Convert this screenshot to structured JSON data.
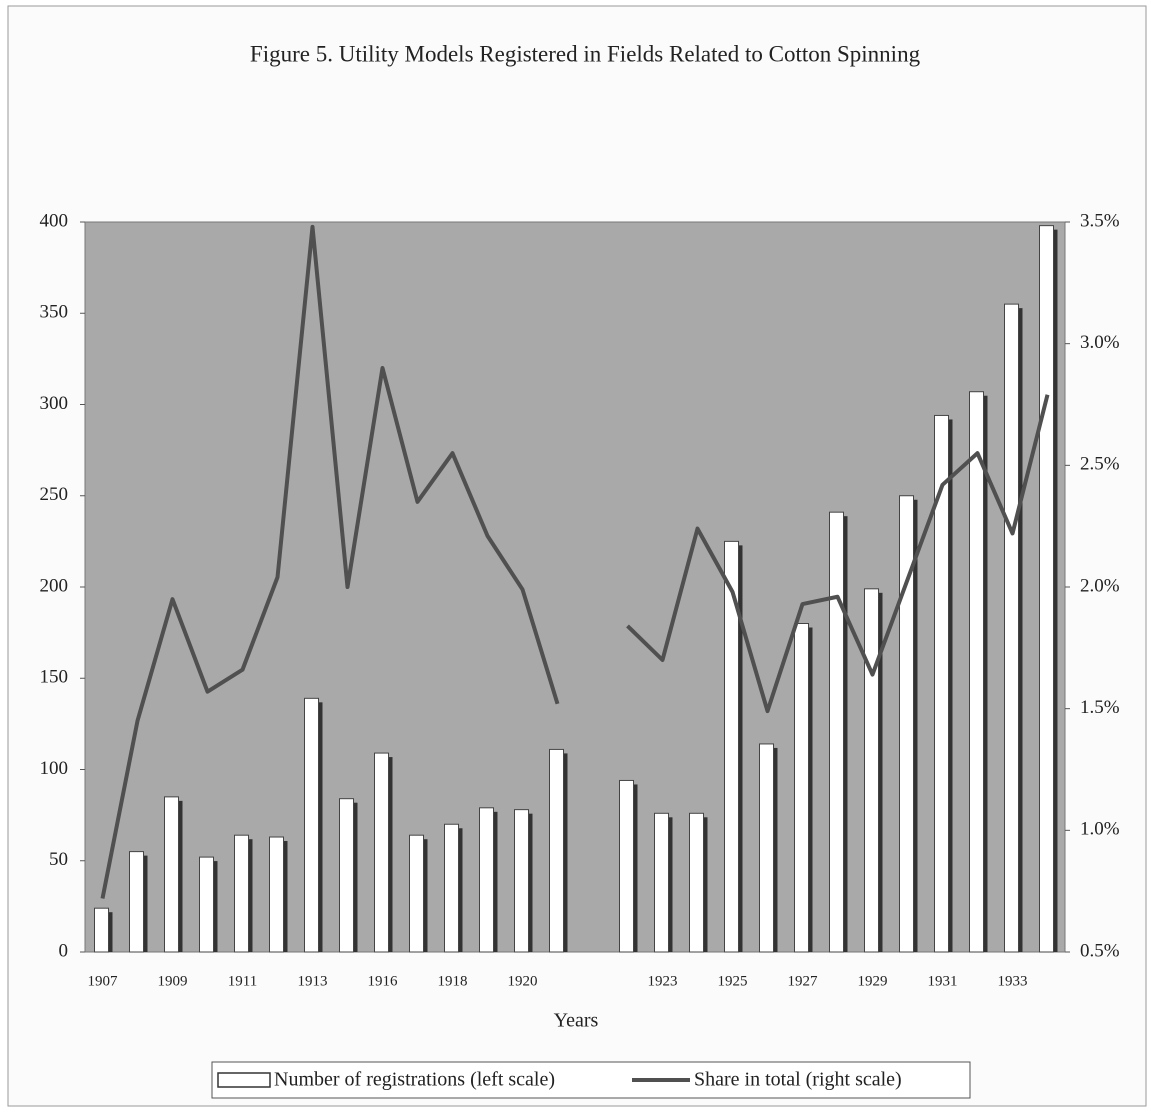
{
  "chart_data": {
    "type": "bar_line",
    "title": "Figure 5. Utility Models Registered in Fields Related to Cotton Spinning",
    "x_label": "Years",
    "categories": [
      "1907",
      null,
      "1909",
      null,
      "1911",
      null,
      "1913",
      null,
      "1916",
      null,
      "1918",
      null,
      "1920",
      null,
      null,
      null,
      "1923",
      null,
      "1925",
      null,
      "1927",
      null,
      "1929",
      null,
      "1931",
      null,
      "1933",
      null
    ],
    "series": [
      {
        "name": "Number of registrations (left scale)",
        "color": "#ffffff",
        "values": [
          24,
          55,
          85,
          52,
          64,
          63,
          139,
          84,
          109,
          64,
          70,
          79,
          78,
          111,
          null,
          94,
          76,
          76,
          225,
          114,
          180,
          241,
          199,
          250,
          294,
          307,
          355,
          398
        ]
      },
      {
        "name": "Share in total (right scale)",
        "color": "#505050",
        "axis": "y2",
        "values": [
          0.72,
          1.45,
          1.95,
          1.57,
          1.66,
          2.04,
          3.48,
          2.0,
          2.9,
          2.35,
          2.55,
          2.21,
          1.99,
          1.52,
          null,
          1.84,
          1.7,
          2.24,
          1.98,
          1.49,
          1.93,
          1.96,
          1.64,
          2.03,
          2.42,
          2.55,
          2.22,
          2.79
        ]
      }
    ],
    "ylim": [
      0,
      400
    ],
    "yticks": [
      0,
      50,
      100,
      150,
      200,
      250,
      300,
      350,
      400
    ],
    "y2lim": [
      0.5,
      3.5
    ],
    "y2ticks": [
      {
        "value": 0.5,
        "label": "0.5%"
      },
      {
        "value": 1.0,
        "label": "1.0%"
      },
      {
        "value": 1.5,
        "label": "1.5%"
      },
      {
        "value": 2.0,
        "label": "2.0%"
      },
      {
        "value": 2.5,
        "label": "2.5%"
      },
      {
        "value": 3.0,
        "label": "3.0%"
      },
      {
        "value": 3.5,
        "label": "3.5%"
      }
    ],
    "plot_background": "#a9a9a9"
  }
}
